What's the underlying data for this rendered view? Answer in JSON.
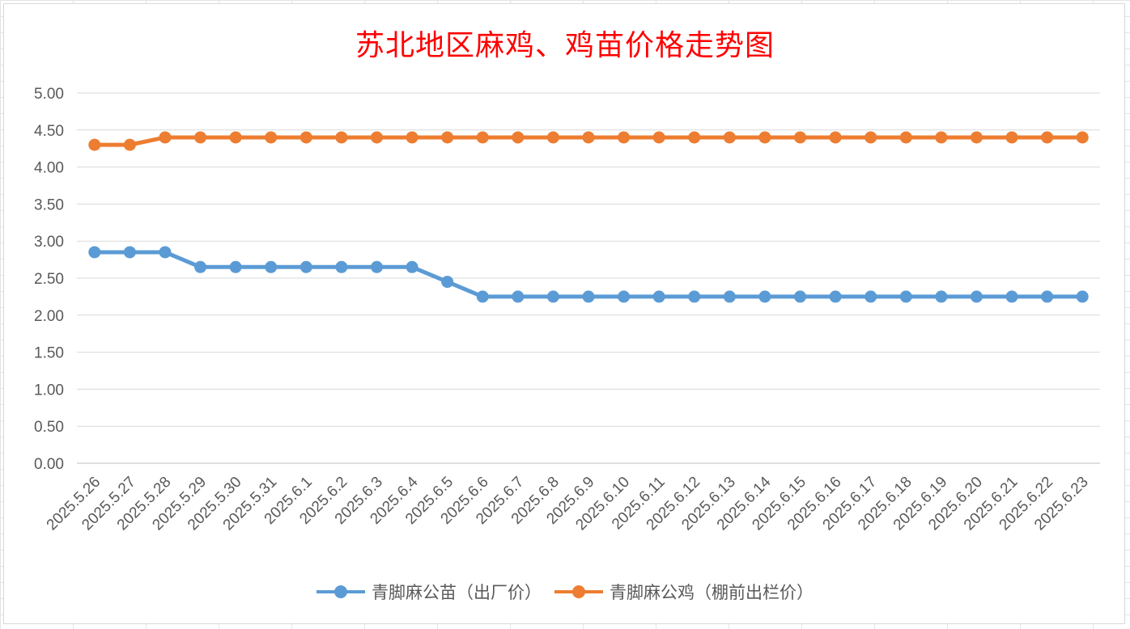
{
  "chart_data": {
    "type": "line",
    "title": "苏北地区麻鸡、鸡苗价格走势图",
    "xlabel": "",
    "ylabel": "",
    "ylim": [
      0,
      5
    ],
    "yticks": [
      "0.00",
      "0.50",
      "1.00",
      "1.50",
      "2.00",
      "2.50",
      "3.00",
      "3.50",
      "4.00",
      "4.50",
      "5.00"
    ],
    "grid": true,
    "legend_position": "bottom",
    "categories": [
      "2025.5.26",
      "2025.5.27",
      "2025.5.28",
      "2025.5.29",
      "2025.5.30",
      "2025.5.31",
      "2025.6.1",
      "2025.6.2",
      "2025.6.3",
      "2025.6.4",
      "2025.6.5",
      "2025.6.6",
      "2025.6.7",
      "2025.6.8",
      "2025.6.9",
      "2025.6.10",
      "2025.6.11",
      "2025.6.12",
      "2025.6.13",
      "2025.6.14",
      "2025.6.15",
      "2025.6.16",
      "2025.6.17",
      "2025.6.18",
      "2025.6.19",
      "2025.6.20",
      "2025.6.21",
      "2025.6.22",
      "2025.6.23"
    ],
    "series": [
      {
        "name": "青脚麻公苗（出厂价）",
        "color": "#5b9bd5",
        "values": [
          2.85,
          2.85,
          2.85,
          2.65,
          2.65,
          2.65,
          2.65,
          2.65,
          2.65,
          2.65,
          2.45,
          2.25,
          2.25,
          2.25,
          2.25,
          2.25,
          2.25,
          2.25,
          2.25,
          2.25,
          2.25,
          2.25,
          2.25,
          2.25,
          2.25,
          2.25,
          2.25,
          2.25,
          2.25
        ]
      },
      {
        "name": "青脚麻公鸡（棚前出栏价）",
        "color": "#ed7d31",
        "values": [
          4.3,
          4.3,
          4.4,
          4.4,
          4.4,
          4.4,
          4.4,
          4.4,
          4.4,
          4.4,
          4.4,
          4.4,
          4.4,
          4.4,
          4.4,
          4.4,
          4.4,
          4.4,
          4.4,
          4.4,
          4.4,
          4.4,
          4.4,
          4.4,
          4.4,
          4.4,
          4.4,
          4.4,
          4.4
        ]
      }
    ]
  }
}
